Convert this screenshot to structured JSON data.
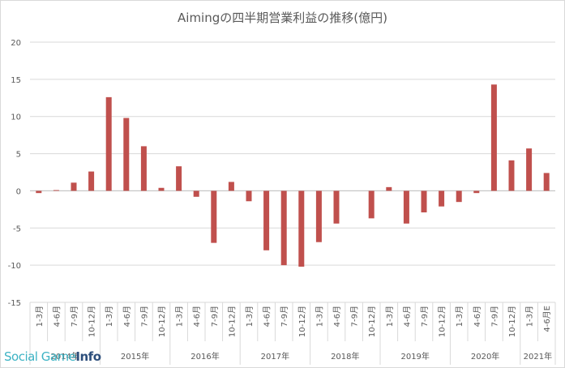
{
  "chart_data": {
    "type": "bar",
    "title": "Aimingの四半期営業利益の推移(億円)",
    "ylim": [
      -15,
      20
    ],
    "y_ticks": [
      20,
      15,
      10,
      5,
      0,
      -5,
      -10,
      -15
    ],
    "grid": true,
    "bar_color": "#c0504d",
    "categories": [
      "1-3月",
      "4-6月",
      "7-9月",
      "10-12月",
      "1-3月",
      "4-6月",
      "7-9月",
      "10-12月",
      "1-3月",
      "4-6月",
      "7-9月",
      "10-12月",
      "1-3月",
      "4-6月",
      "7-9月",
      "10-12月",
      "1-3月",
      "4-6月",
      "7-9月",
      "10-12月",
      "1-3月",
      "4-6月",
      "7-9月",
      "10-12月",
      "1-3月",
      "4-6月",
      "7-9月",
      "10-12月",
      "1-3月",
      "4-6月E"
    ],
    "values": [
      -0.3,
      0.1,
      1.1,
      2.6,
      12.6,
      9.8,
      6.0,
      0.4,
      3.3,
      -0.8,
      -7.0,
      1.2,
      -1.4,
      -8.0,
      -10.0,
      -10.2,
      -6.9,
      -4.4,
      0.0,
      -3.7,
      0.5,
      -4.4,
      -2.9,
      -2.1,
      -1.5,
      -0.3,
      14.3,
      4.1,
      5.7,
      2.4
    ],
    "year_groups": [
      {
        "label": "2014年",
        "count": 4
      },
      {
        "label": "2015年",
        "count": 4
      },
      {
        "label": "2016年",
        "count": 4
      },
      {
        "label": "2017年",
        "count": 4
      },
      {
        "label": "2018年",
        "count": 4
      },
      {
        "label": "2019年",
        "count": 4
      },
      {
        "label": "2020年",
        "count": 4
      },
      {
        "label": "2021年",
        "count": 2
      }
    ]
  },
  "watermark": {
    "part_a": "Social Game",
    "part_b": "Info"
  }
}
